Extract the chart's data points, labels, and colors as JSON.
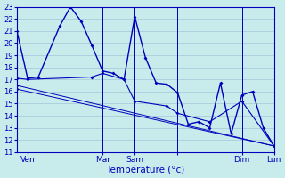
{
  "background_color": "#c8ecec",
  "grid_color": "#a0c8d8",
  "line_color": "#0000bb",
  "xlabel": "Température (°c)",
  "ylim": [
    11,
    23
  ],
  "yticks": [
    11,
    12,
    13,
    14,
    15,
    16,
    17,
    18,
    19,
    20,
    21,
    22,
    23
  ],
  "xlim": [
    0,
    24
  ],
  "xtick_positions": [
    1,
    8,
    11,
    15,
    21,
    24
  ],
  "xtick_labels": [
    "Ven",
    "Mar",
    "Sam",
    "",
    "Dim",
    "Lun"
  ],
  "vline_positions": [
    1,
    8,
    11,
    15,
    21,
    24
  ],
  "series": [
    {
      "x": [
        0,
        1,
        2,
        4,
        5,
        6,
        7,
        8,
        9,
        10,
        11,
        12,
        13,
        14,
        15,
        16,
        17,
        18,
        19,
        20,
        21,
        22,
        23,
        24
      ],
      "y": [
        21,
        17.1,
        17.2,
        21.4,
        23.0,
        21.8,
        19.8,
        17.7,
        17.5,
        17.0,
        22.2,
        18.8,
        16.7,
        16.6,
        15.9,
        13.3,
        13.5,
        13.0,
        16.7,
        12.5,
        15.7,
        16.0,
        13.0,
        11.5
      ],
      "lw": 1.0
    },
    {
      "x": [
        0,
        1,
        7,
        8,
        10,
        11,
        14,
        15,
        18,
        21,
        24
      ],
      "y": [
        17.1,
        17.0,
        17.2,
        17.5,
        17.0,
        15.2,
        14.8,
        14.2,
        13.5,
        15.2,
        11.5
      ],
      "lw": 0.8
    },
    {
      "x": [
        0,
        24
      ],
      "y": [
        16.5,
        11.5
      ],
      "lw": 0.7
    },
    {
      "x": [
        0,
        24
      ],
      "y": [
        16.2,
        11.5
      ],
      "lw": 0.7
    }
  ]
}
